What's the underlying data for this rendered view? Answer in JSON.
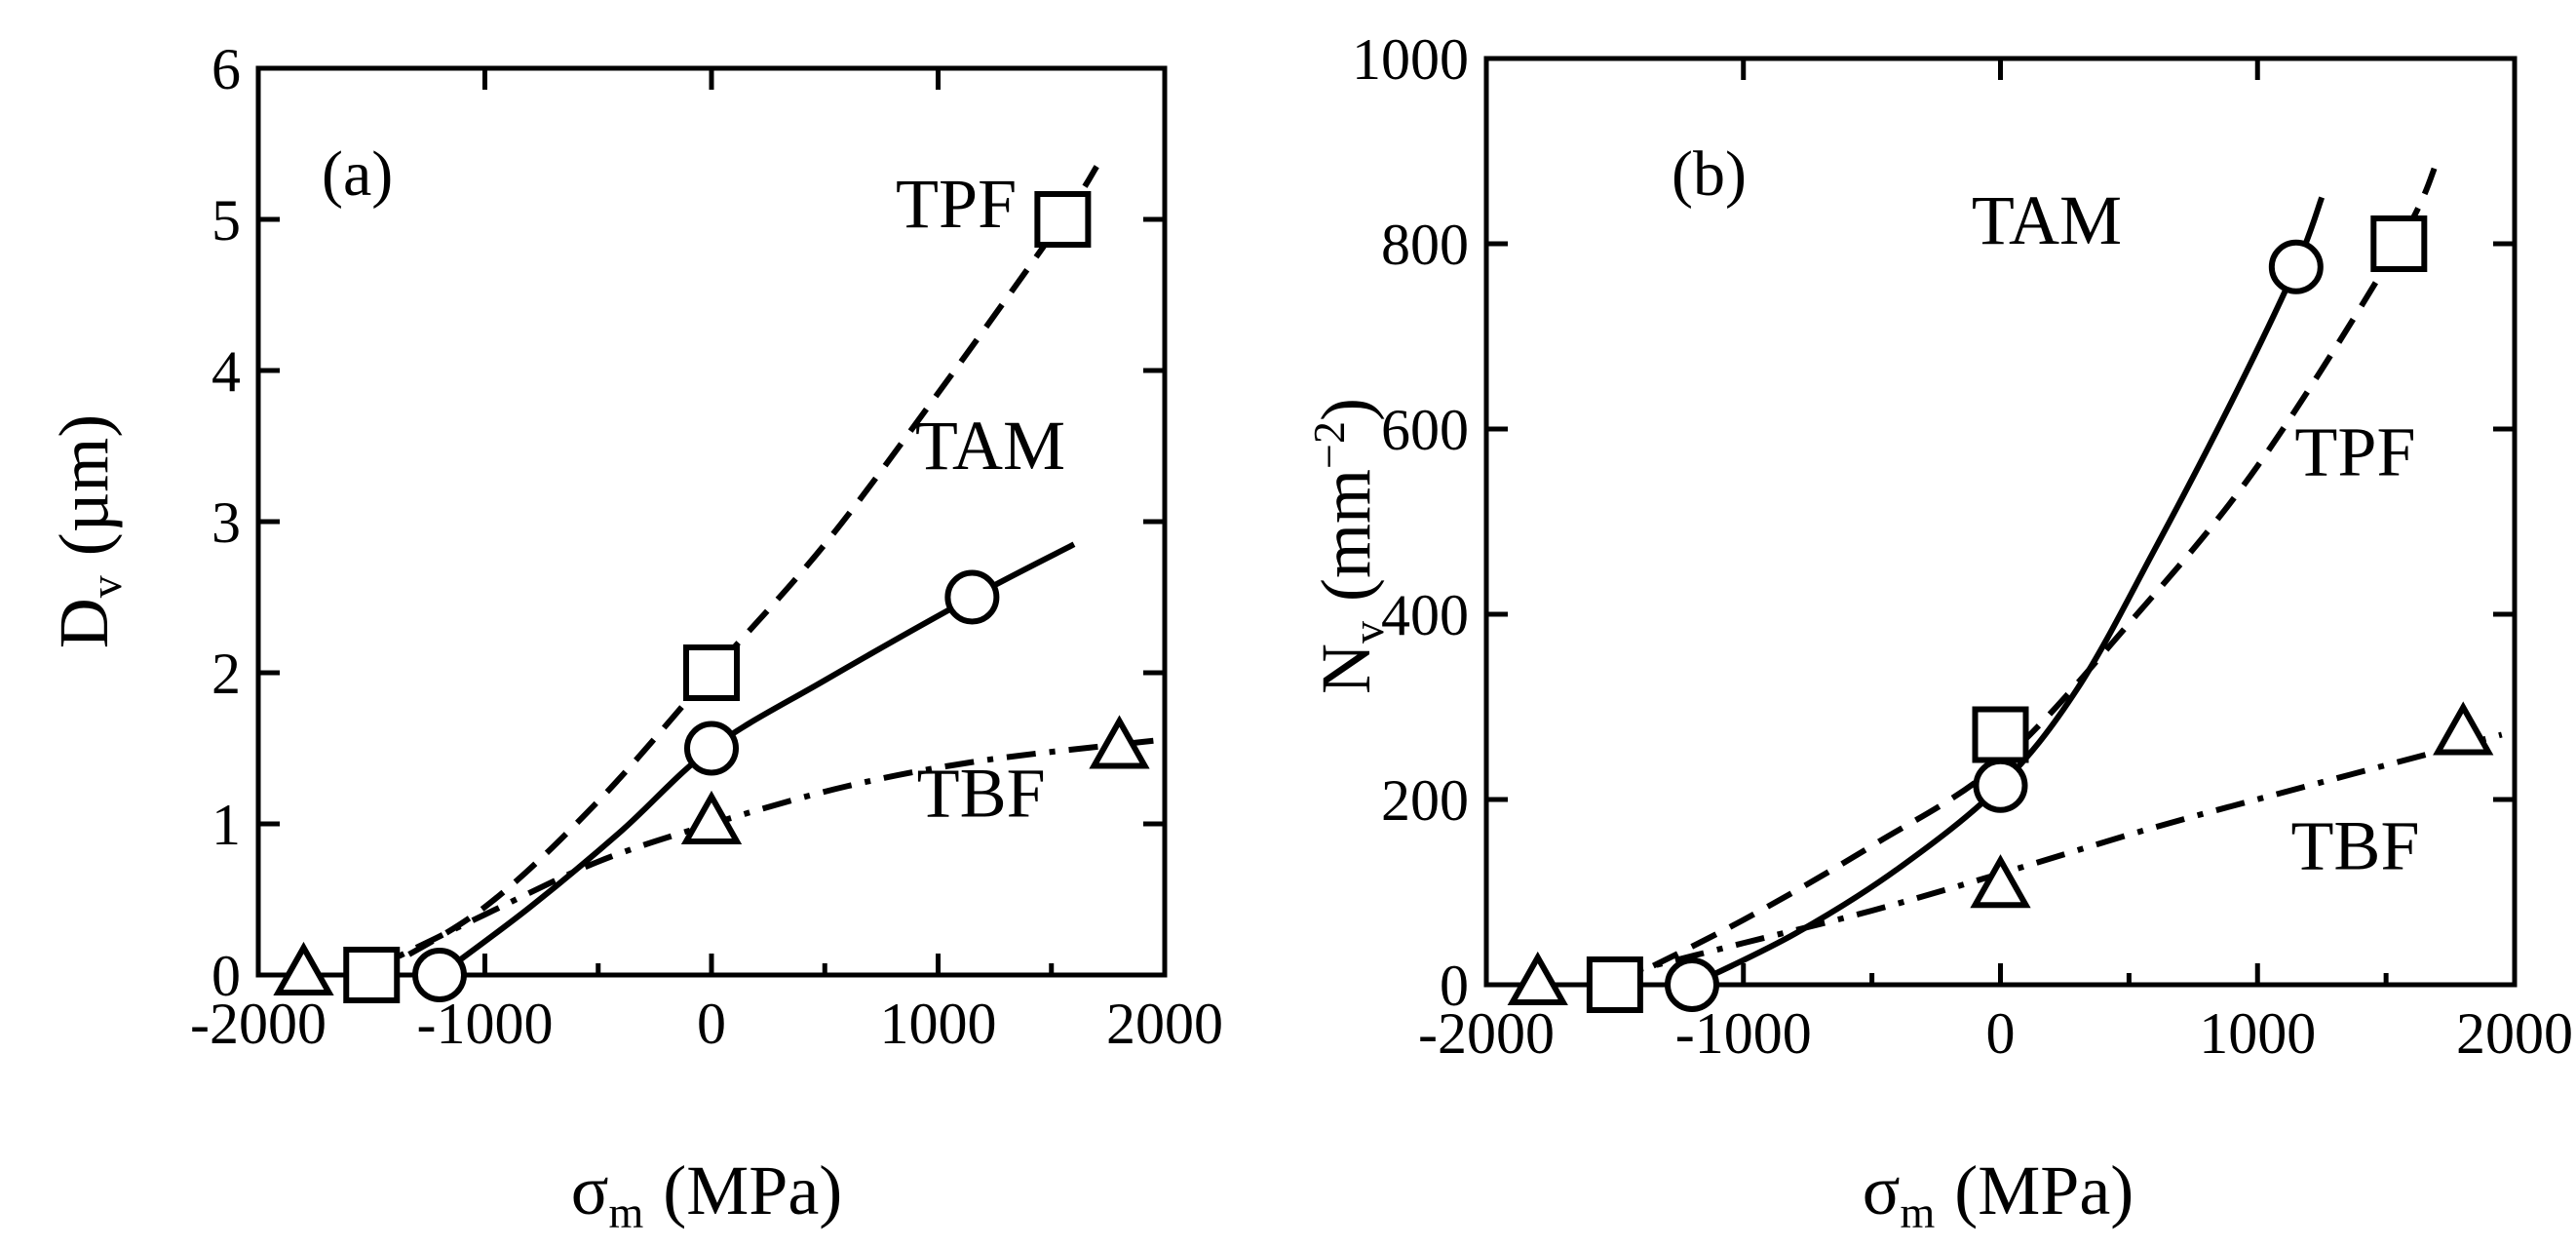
{
  "chart_data": [
    {
      "type": "scatter",
      "panel_label": "(a)",
      "xlabel": "σm (MPa)",
      "xlabel_main": "σ",
      "xlabel_sub": "m",
      "xlabel_units": "(MPa)",
      "ylabel": "Dv (µm)",
      "ylabel_main": "D",
      "ylabel_sub": "v",
      "ylabel_units": "(µm)",
      "xlim": [
        -2000,
        2000
      ],
      "ylim": [
        0,
        6
      ],
      "xticks": [
        "-2000",
        "-1000",
        "0",
        "1000",
        "2000"
      ],
      "yticks": [
        "0",
        "1",
        "2",
        "3",
        "4",
        "5",
        "6"
      ],
      "series": [
        {
          "name": "TPF",
          "marker": "square",
          "line": "dashed",
          "points": [
            [
              -1500,
              0
            ],
            [
              0,
              2
            ],
            [
              1550,
              5
            ]
          ],
          "curve": [
            [
              -1500,
              0
            ],
            [
              -1000,
              0.45
            ],
            [
              -500,
              1.15
            ],
            [
              0,
              2.0
            ],
            [
              500,
              2.85
            ],
            [
              1000,
              3.85
            ],
            [
              1550,
              5.0
            ],
            [
              1700,
              5.35
            ]
          ]
        },
        {
          "name": "TAM",
          "marker": "circle",
          "line": "solid",
          "points": [
            [
              -1200,
              0
            ],
            [
              0,
              1.5
            ],
            [
              1150,
              2.5
            ]
          ],
          "curve": [
            [
              -1200,
              0
            ],
            [
              -800,
              0.45
            ],
            [
              -400,
              0.95
            ],
            [
              0,
              1.5
            ],
            [
              500,
              1.95
            ],
            [
              1150,
              2.5
            ],
            [
              1600,
              2.85
            ]
          ]
        },
        {
          "name": "TBF",
          "marker": "triangle",
          "line": "dashdot",
          "points": [
            [
              -1800,
              0
            ],
            [
              0,
              1.0
            ],
            [
              1800,
              1.5
            ]
          ],
          "curve": [
            [
              -1550,
              0.0
            ],
            [
              -1000,
              0.4
            ],
            [
              -500,
              0.75
            ],
            [
              0,
              1.0
            ],
            [
              600,
              1.25
            ],
            [
              1200,
              1.42
            ],
            [
              1950,
              1.55
            ]
          ]
        }
      ],
      "labels": [
        {
          "series": "TPF",
          "text": "TPF",
          "at": [
            1080,
            4.95
          ]
        },
        {
          "series": "TAM",
          "text": "TAM",
          "at": [
            1230,
            3.35
          ]
        },
        {
          "series": "TBF",
          "text": "TBF",
          "at": [
            1190,
            1.05
          ]
        }
      ]
    },
    {
      "type": "scatter",
      "panel_label": "(b)",
      "xlabel": "σm (MPa)",
      "xlabel_main": "σ",
      "xlabel_sub": "m",
      "xlabel_units": "(MPa)",
      "ylabel": "Nv (mm−2)",
      "ylabel_main": "N",
      "ylabel_sub": "v",
      "ylabel_units_pre": "(mm",
      "ylabel_units_sup": "−2",
      "ylabel_units_post": ")",
      "xlim": [
        -2000,
        2000
      ],
      "ylim": [
        0,
        1000
      ],
      "xticks": [
        "-2000",
        "-1000",
        "0",
        "1000",
        "2000"
      ],
      "yticks": [
        "0",
        "200",
        "400",
        "600",
        "800",
        "1000"
      ],
      "series": [
        {
          "name": "TAM",
          "marker": "circle",
          "line": "solid",
          "points": [
            [
              -1200,
              0
            ],
            [
              0,
              215
            ],
            [
              1150,
              775
            ]
          ],
          "curve": [
            [
              -1200,
              0
            ],
            [
              -800,
              55
            ],
            [
              -400,
              125
            ],
            [
              0,
              215
            ],
            [
              300,
              320
            ],
            [
              600,
              470
            ],
            [
              900,
              630
            ],
            [
              1150,
              775
            ],
            [
              1250,
              850
            ]
          ]
        },
        {
          "name": "TPF",
          "marker": "square",
          "line": "dashed",
          "points": [
            [
              -1500,
              0
            ],
            [
              0,
              270
            ],
            [
              1550,
              800
            ]
          ],
          "curve": [
            [
              -1500,
              0
            ],
            [
              -1000,
              70
            ],
            [
              -500,
              150
            ],
            [
              0,
              240
            ],
            [
              500,
              390
            ],
            [
              1000,
              560
            ],
            [
              1550,
              800
            ],
            [
              1700,
              890
            ]
          ]
        },
        {
          "name": "TBF",
          "marker": "triangle",
          "line": "dashdot",
          "points": [
            [
              -1800,
              0
            ],
            [
              0,
              105
            ],
            [
              1800,
              270
            ]
          ],
          "curve": [
            [
              -1500,
              10
            ],
            [
              -1000,
              45
            ],
            [
              -500,
              80
            ],
            [
              0,
              120
            ],
            [
              600,
              170
            ],
            [
              1200,
              215
            ],
            [
              1950,
              270
            ]
          ]
        }
      ],
      "labels": [
        {
          "series": "TAM",
          "text": "TAM",
          "at": [
            180,
            800
          ]
        },
        {
          "series": "TPF",
          "text": "TPF",
          "at": [
            1380,
            550
          ]
        },
        {
          "series": "TBF",
          "text": "TBF",
          "at": [
            1380,
            125
          ]
        }
      ]
    }
  ]
}
